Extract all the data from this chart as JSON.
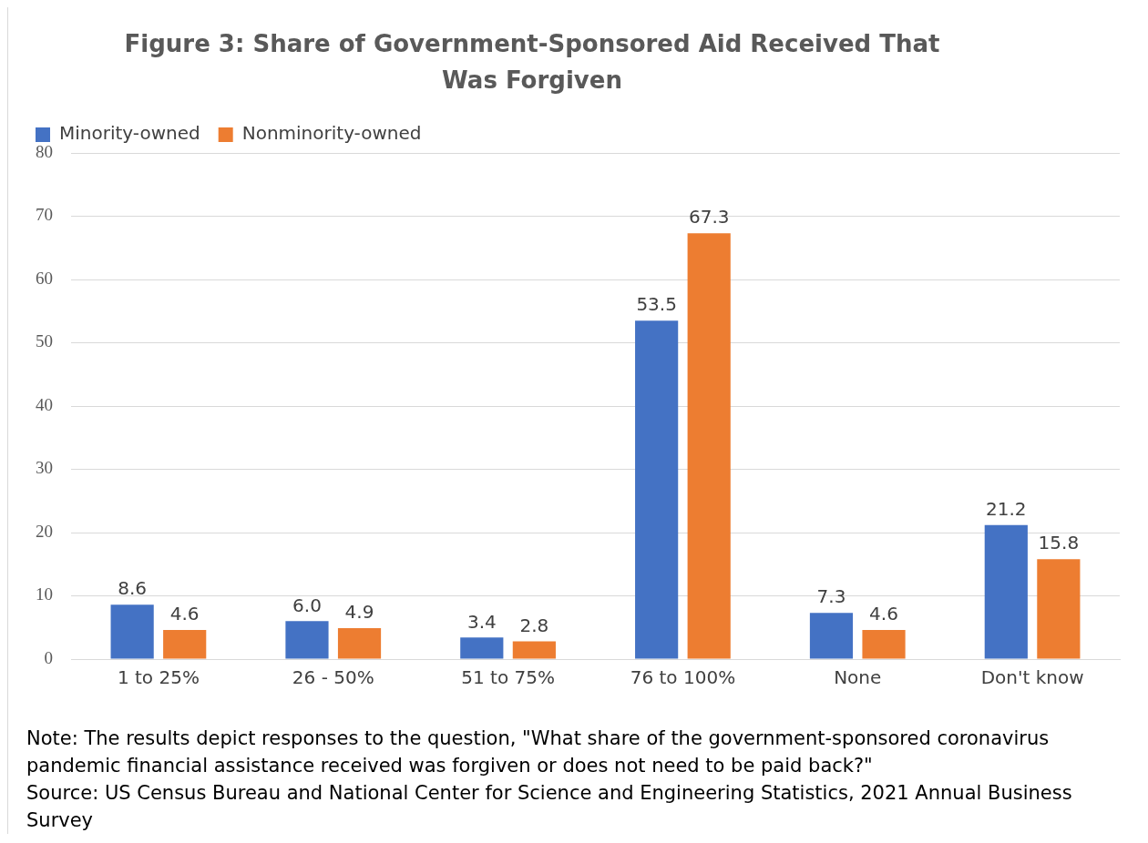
{
  "chart_data": {
    "type": "bar",
    "title": "Figure 3: Share of Government-Sponsored Aid Received That Was Forgiven",
    "categories": [
      "1 to 25%",
      "26 - 50%",
      "51 to 75%",
      "76 to 100%",
      "None",
      "Don't know"
    ],
    "series": [
      {
        "name": "Minority-owned",
        "color": "#4472c4",
        "values": [
          8.6,
          6.0,
          3.4,
          53.5,
          7.3,
          21.2
        ],
        "value_labels": [
          "8.6",
          "6.0",
          "3.4",
          "53.5",
          "7.3",
          "21.2"
        ]
      },
      {
        "name": "Nonminority-owned",
        "color": "#ed7d31",
        "values": [
          4.6,
          4.9,
          2.8,
          67.3,
          4.6,
          15.8
        ],
        "value_labels": [
          "4.6",
          "4.9",
          "2.8",
          "67.3",
          "4.6",
          "15.8"
        ]
      }
    ],
    "ylim": [
      0,
      80
    ],
    "yticks": [
      0,
      10,
      20,
      30,
      40,
      50,
      60,
      70,
      80
    ],
    "grid": "y",
    "legend": "top left",
    "annotations": [
      "Note: The results depict responses to the question, \"What share of the government-sponsored coronavirus pandemic financial assistance received was forgiven or does not need to be paid back?\"",
      "Source: US Census Bureau and National Center for Science and Engineering Statistics, 2021 Annual Business Survey"
    ]
  }
}
